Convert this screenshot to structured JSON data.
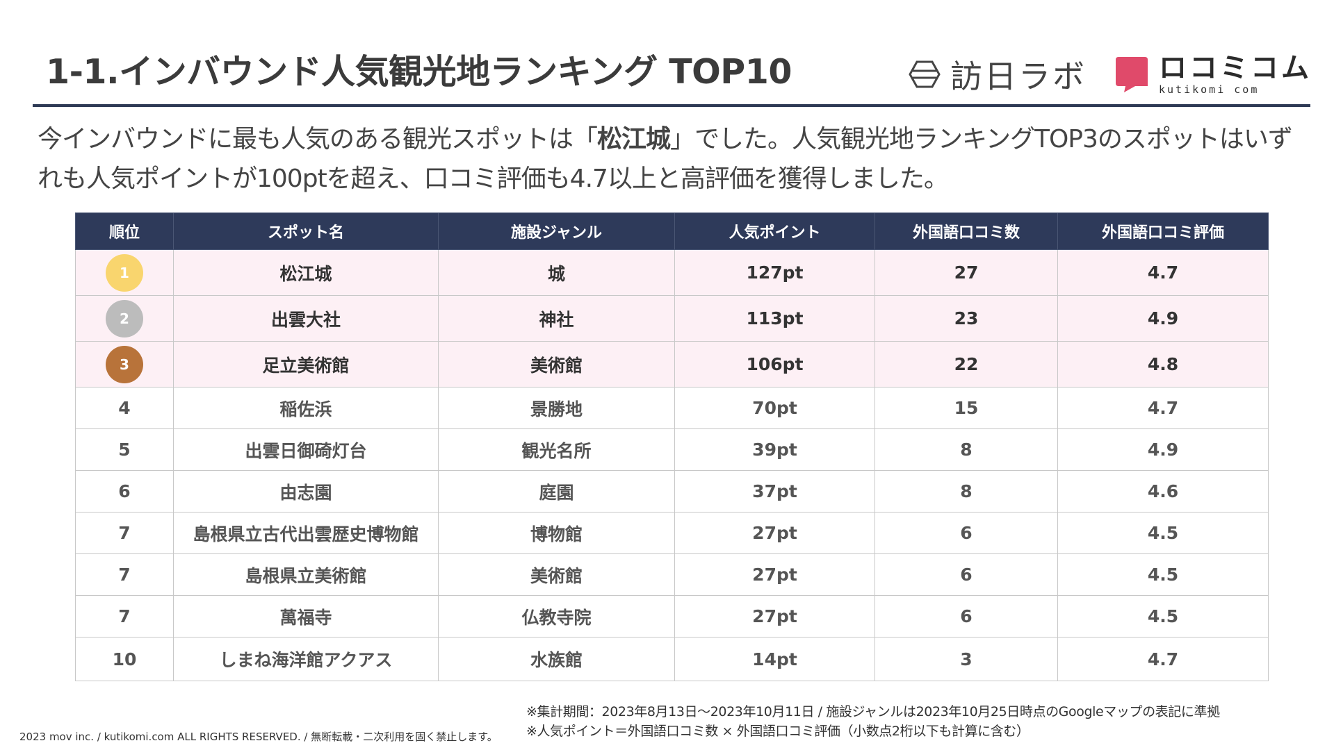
{
  "title": "1-1.インバウンド人気観光地ランキング TOP10",
  "logos": {
    "houjin_labo": "訪日ラボ",
    "kuchikomi_name": "ロコミコム",
    "kuchikomi_url": "kutikomi com",
    "kuchikomi_color": "#e04a6a"
  },
  "summary": {
    "part1": "今インバウンドに最も人気のある観光スポットは「",
    "highlight": "松江城",
    "part2": "」でした。人気観光地ランキングTOP3のスポットはいずれも人気ポイントが100ptを超え、口コミ評価も4.7以上と高評価を獲得しました。"
  },
  "table": {
    "headers": [
      "順位",
      "スポット名",
      "施設ジャンル",
      "人気ポイント",
      "外国語口コミ数",
      "外国語口コミ評価"
    ],
    "medal_colors": [
      "#f9d56e",
      "#bcbcbc",
      "#b8733a"
    ],
    "rows": [
      {
        "rank": "1",
        "name": "松江城",
        "genre": "城",
        "points": "127pt",
        "reviews": "27",
        "rating": "4.7"
      },
      {
        "rank": "2",
        "name": "出雲大社",
        "genre": "神社",
        "points": "113pt",
        "reviews": "23",
        "rating": "4.9"
      },
      {
        "rank": "3",
        "name": "足立美術館",
        "genre": "美術館",
        "points": "106pt",
        "reviews": "22",
        "rating": "4.8"
      },
      {
        "rank": "4",
        "name": "稲佐浜",
        "genre": "景勝地",
        "points": "70pt",
        "reviews": "15",
        "rating": "4.7"
      },
      {
        "rank": "5",
        "name": "出雲日御碕灯台",
        "genre": "観光名所",
        "points": "39pt",
        "reviews": "8",
        "rating": "4.9"
      },
      {
        "rank": "6",
        "name": "由志園",
        "genre": "庭園",
        "points": "37pt",
        "reviews": "8",
        "rating": "4.6"
      },
      {
        "rank": "7",
        "name": "島根県立古代出雲歴史博物館",
        "genre": "博物館",
        "points": "27pt",
        "reviews": "6",
        "rating": "4.5"
      },
      {
        "rank": "7",
        "name": "島根県立美術館",
        "genre": "美術館",
        "points": "27pt",
        "reviews": "6",
        "rating": "4.5"
      },
      {
        "rank": "7",
        "name": "萬福寺",
        "genre": "仏教寺院",
        "points": "27pt",
        "reviews": "6",
        "rating": "4.5"
      },
      {
        "rank": "10",
        "name": "しまね海洋館アクアス",
        "genre": "水族館",
        "points": "14pt",
        "reviews": "3",
        "rating": "4.7"
      }
    ]
  },
  "notes": {
    "line1": "※集計期間：2023年8月13日〜2023年10月11日 / 施設ジャンルは2023年10月25日時点のGoogleマップの表記に準拠",
    "line2": "※人気ポイント＝外国語口コミ数 × 外国語口コミ評価（小数点2桁以下も計算に含む）"
  },
  "copyright": "2023 mov inc. / kutikomi.com ALL RIGHTS RESERVED. / 無断転載・二次利用を固く禁止します。"
}
